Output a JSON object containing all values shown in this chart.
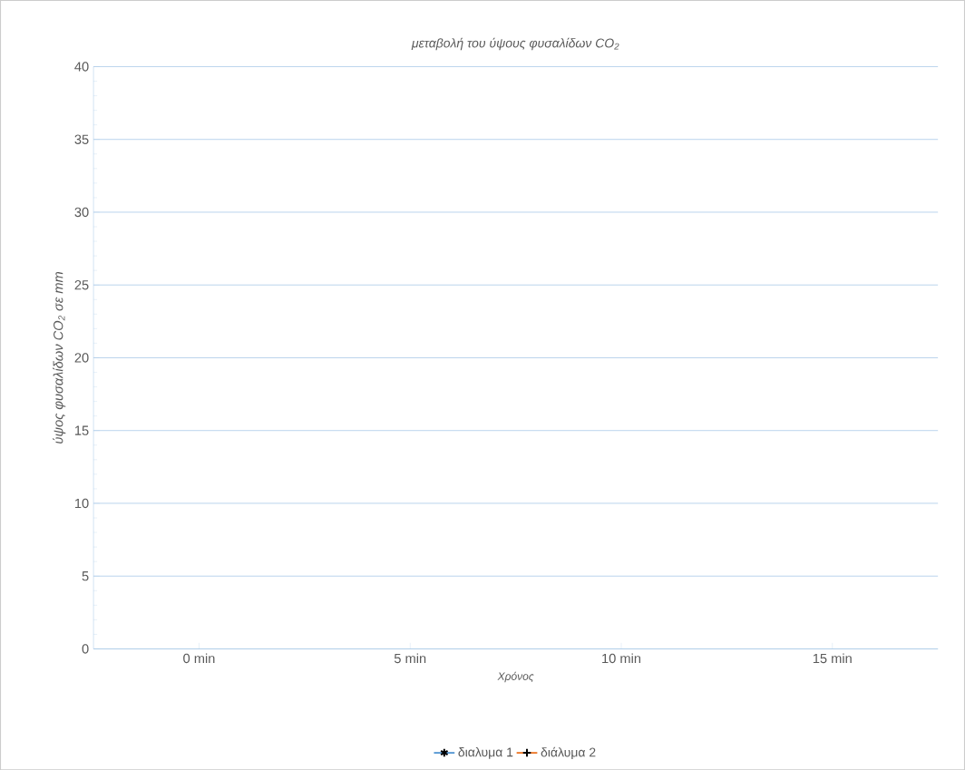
{
  "chart_data": {
    "type": "line",
    "title": "μεταβολή του ύψους φυσαλίδων CO$_{2}$",
    "xlabel": "Χρόνος",
    "ylabel": "ύψος φυσαλίδων CO$_{2}$ σε mm",
    "categories": [
      "0 min",
      "5 min",
      "10 min",
      "15 min"
    ],
    "series": [
      {
        "name": "διαλυμα 1",
        "color": "#5b9bd5",
        "marker": "star",
        "values": [
          null,
          null,
          null,
          null
        ]
      },
      {
        "name": "διάλυμα 2",
        "color": "#ed7d31",
        "marker": "cross",
        "values": [
          null,
          null,
          null,
          null
        ]
      }
    ],
    "ylim": [
      0,
      40
    ],
    "yticks": [
      0,
      5,
      10,
      15,
      20,
      25,
      30,
      35,
      40
    ],
    "grid": "y",
    "legend": "bottom"
  }
}
